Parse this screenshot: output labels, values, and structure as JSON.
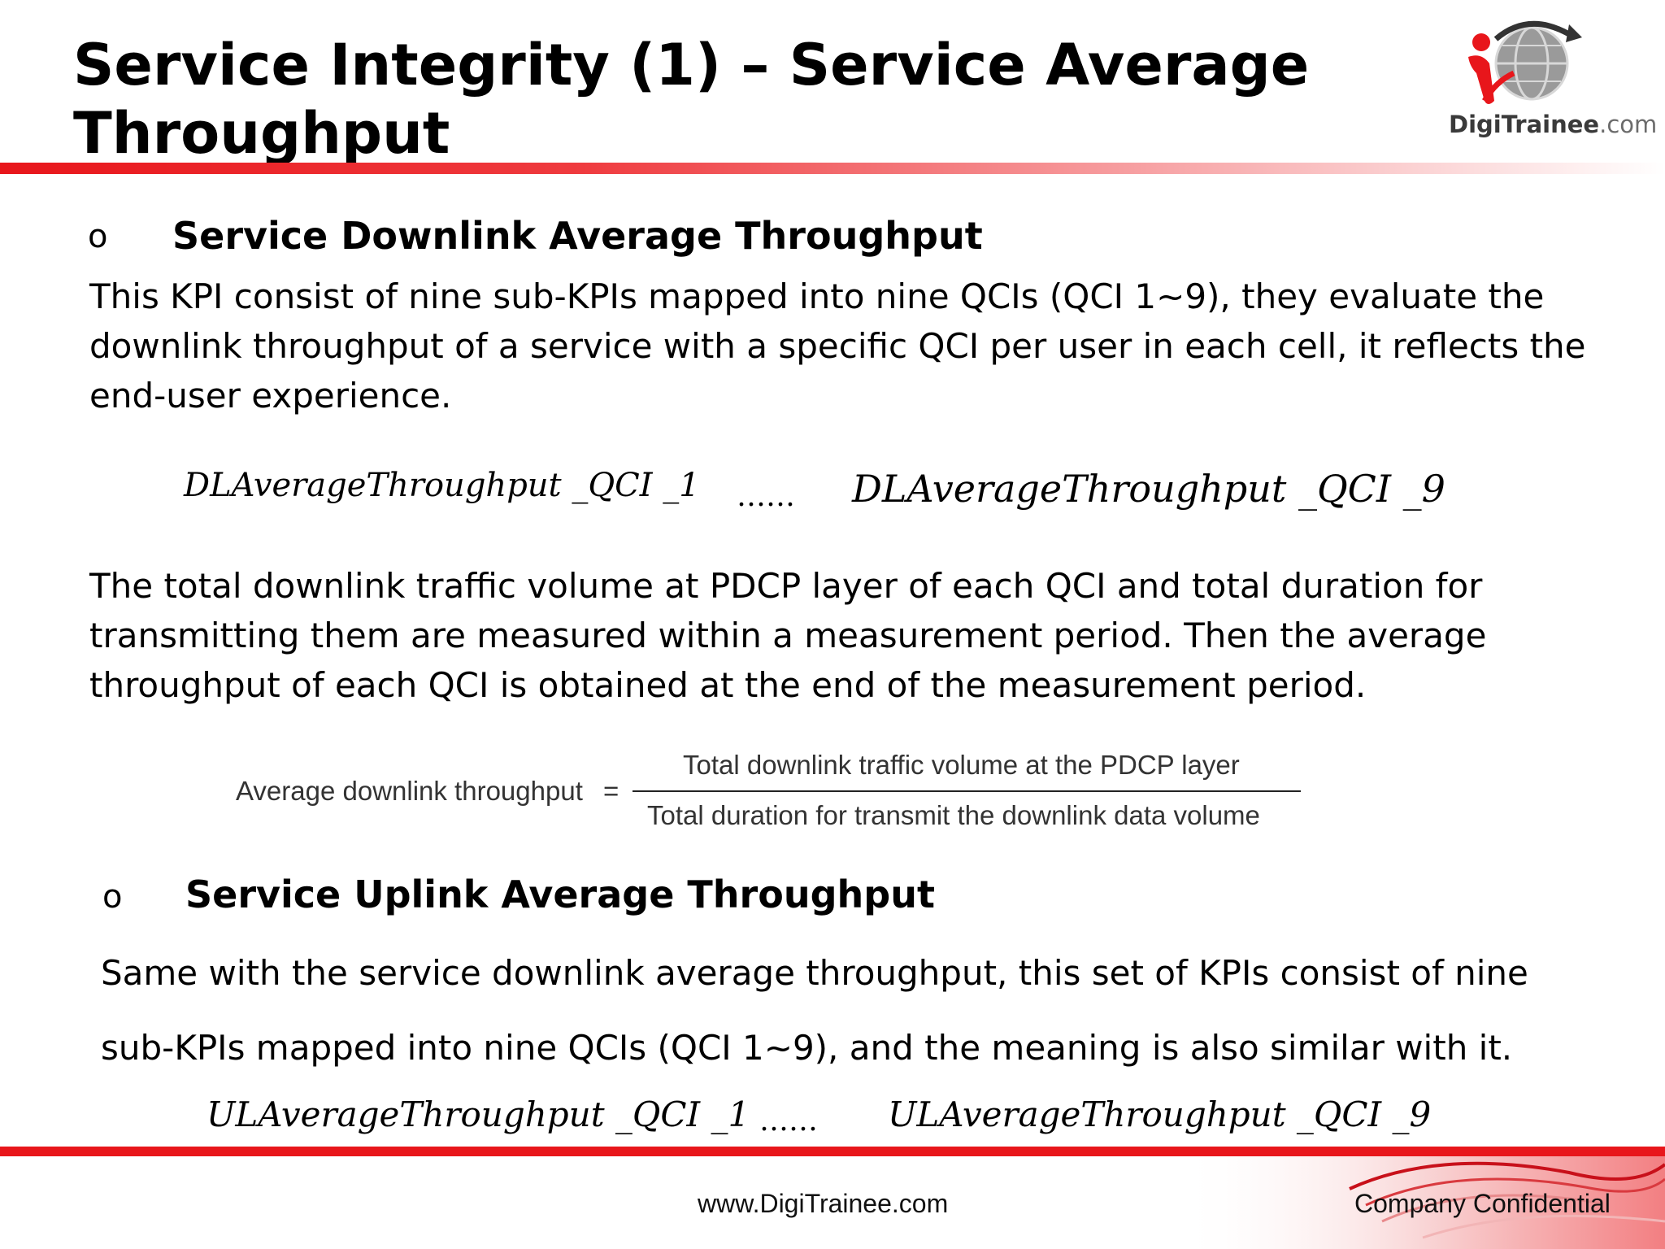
{
  "slide": {
    "title": "Service Integrity (1) – Service Average Throughput"
  },
  "logo": {
    "brand": "DigiTrainee",
    "suffix": ".com"
  },
  "downlink": {
    "bullet": "o",
    "heading": "Service Downlink Average Throughput",
    "description": "This KPI consist of nine sub-KPIs mapped into nine QCIs (QCI 1~9), they evaluate the downlink throughput of a service with a specific QCI per user in each cell, it reflects the end-user experience.",
    "formula_first": "DLAverageThroughput _QCI _1",
    "ellipsis": "……",
    "formula_last": "DLAverageThroughput _QCI _9",
    "method": "The total downlink traffic volume at PDCP layer of each QCI and total duration for transmitting them are measured within a measurement period. Then the average throughput of each QCI is obtained at the end of the measurement period.",
    "equation": {
      "lhs": "Average downlink throughput",
      "equals": "=",
      "numerator": "Total downlink traffic volume at the PDCP layer",
      "denominator": "Total duration for transmit  the downlink data volume"
    }
  },
  "uplink": {
    "bullet": "o",
    "heading": "Service Uplink Average Throughput",
    "description_line1": "Same with the service downlink average throughput, this set of KPIs consist of nine",
    "description_line2": "sub-KPIs mapped into nine QCIs (QCI 1~9), and the meaning is also similar with it.",
    "formula_first": "ULAverageThroughput _QCI _1",
    "ellipsis": "……",
    "formula_last": "ULAverageThroughput _QCI _9"
  },
  "footer": {
    "url": "www.DigiTrainee.com",
    "confidential": "Company Confidential"
  },
  "colors": {
    "accent_red": "#e8161b",
    "text": "#000000",
    "logo_grey": "#6b6b6b"
  }
}
